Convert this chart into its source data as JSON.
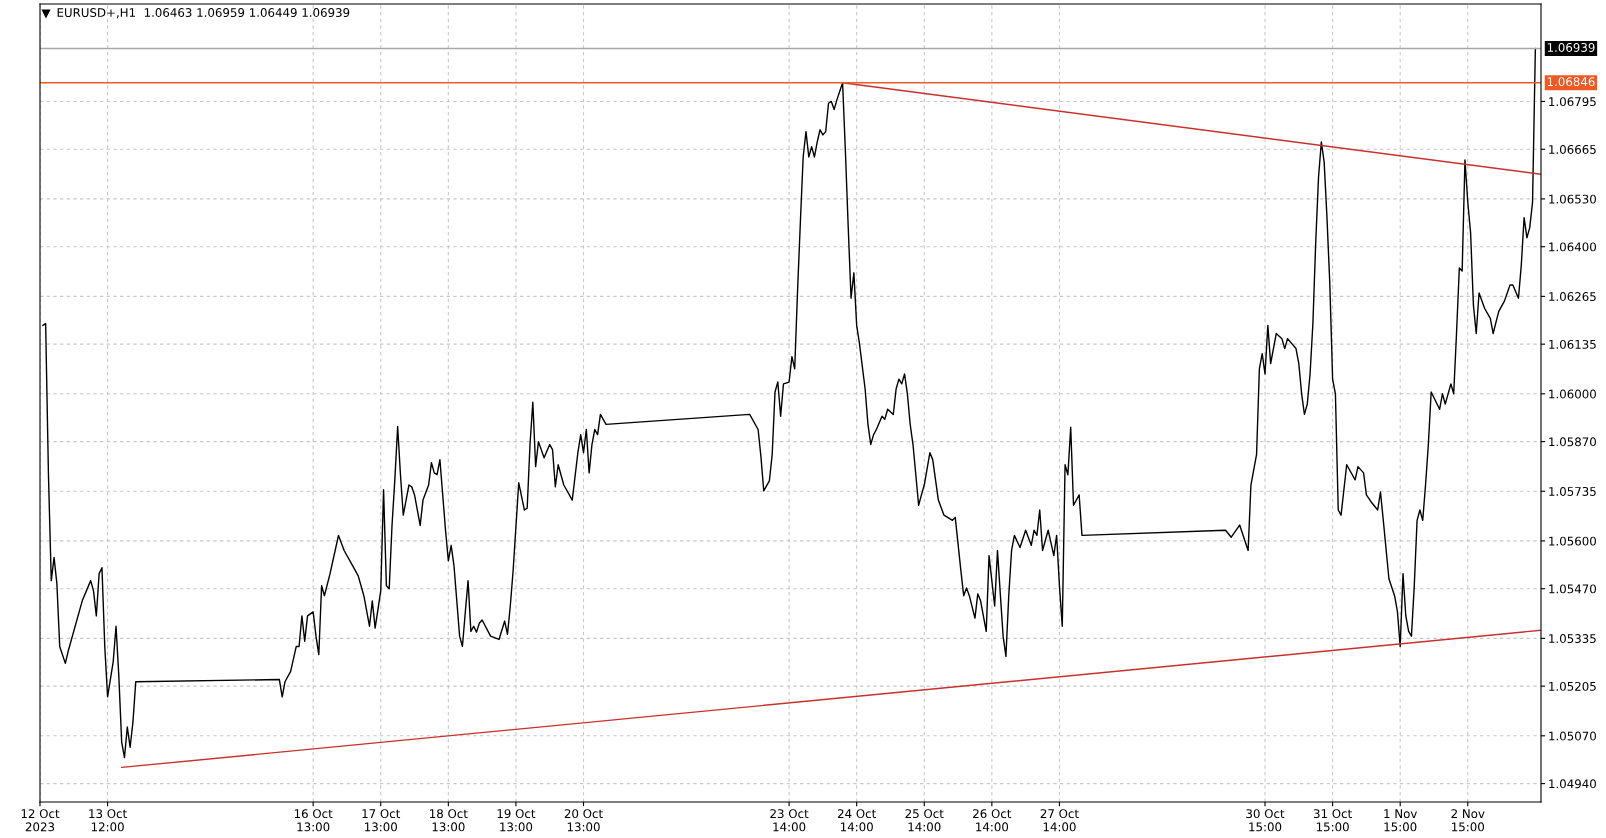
{
  "chart_data": {
    "type": "line",
    "title": "EURUSD+,H1  1.06463 1.06959 1.06449 1.06939",
    "xlim": [
      "2023-10-12T12:00",
      "2023-11-03T17:00"
    ],
    "ylim": [
      1.0489,
      1.0706
    ],
    "xticks": [
      {
        "value": "2023-10-12T12:00",
        "label": "12 Oct 2023"
      },
      {
        "value": "2023-10-13T12:00",
        "label": "13 Oct 12:00"
      },
      {
        "value": "2023-10-16T13:00",
        "label": "16 Oct 13:00"
      },
      {
        "value": "2023-10-17T13:00",
        "label": "17 Oct 13:00"
      },
      {
        "value": "2023-10-18T13:00",
        "label": "18 Oct 13:00"
      },
      {
        "value": "2023-10-19T13:00",
        "label": "19 Oct 13:00"
      },
      {
        "value": "2023-10-20T13:00",
        "label": "20 Oct 13:00"
      },
      {
        "value": "2023-10-23T14:00",
        "label": "23 Oct 14:00"
      },
      {
        "value": "2023-10-24T14:00",
        "label": "24 Oct 14:00"
      },
      {
        "value": "2023-10-25T14:00",
        "label": "25 Oct 14:00"
      },
      {
        "value": "2023-10-26T14:00",
        "label": "26 Oct 14:00"
      },
      {
        "value": "2023-10-27T14:00",
        "label": "27 Oct 14:00"
      },
      {
        "value": "2023-10-30T15:00",
        "label": "30 Oct 15:00"
      },
      {
        "value": "2023-10-31T15:00",
        "label": "31 Oct 15:00"
      },
      {
        "value": "2023-11-01T15:00",
        "label": "1 Nov 15:00"
      },
      {
        "value": "2023-11-02T15:00",
        "label": "2 Nov 15:00"
      }
    ],
    "yticks": [
      {
        "value": 1.0494,
        "label": "1.04940"
      },
      {
        "value": 1.0507,
        "label": "1.05070"
      },
      1.05205,
      1.05335,
      {
        "value": 1.0547,
        "label": "1.05470"
      },
      {
        "value": 1.056,
        "label": "1.05600"
      },
      1.05735,
      {
        "value": 1.0587,
        "label": "1.05870"
      },
      {
        "value": 1.06,
        "label": "1.06000"
      },
      1.06135,
      1.06265,
      {
        "value": 1.064,
        "label": "1.06400"
      },
      {
        "value": 1.0653,
        "label": "1.06530"
      },
      1.06665,
      1.06795
    ],
    "grid": true,
    "ref_lines": [
      {
        "axis": "y",
        "value": 1.06939,
        "label": "1.06939",
        "color": "#a8a8a8"
      },
      {
        "axis": "y",
        "value": 1.06846,
        "label": "1.06846",
        "color": "#f05a22"
      }
    ],
    "series": [
      {
        "color": "#000000",
        "x": [
          "2023-10-12T13:00",
          "2023-10-12T14:00",
          "2023-10-12T15:00",
          "2023-10-12T16:00",
          "2023-10-12T17:00",
          "2023-10-12T18:00",
          "2023-10-12T19:00",
          "2023-10-12T21:00",
          "2023-10-12T22:00",
          "2023-10-13T03:00",
          "2023-10-13T06:00",
          "2023-10-13T07:00",
          "2023-10-13T08:00",
          "2023-10-13T09:00",
          "2023-10-13T10:00",
          "2023-10-13T11:00",
          "2023-10-13T12:00",
          "2023-10-13T14:00",
          "2023-10-13T15:00",
          "2023-10-13T16:00",
          "2023-10-13T17:00",
          "2023-10-13T18:00",
          "2023-10-13T19:00",
          "2023-10-13T20:00",
          "2023-10-13T21:00",
          "2023-10-13T22:00",
          "2023-10-16T01:00",
          "2023-10-16T02:00",
          "2023-10-16T03:00",
          "2023-10-16T05:00",
          "2023-10-16T07:00",
          "2023-10-16T08:00",
          "2023-10-16T09:00",
          "2023-10-16T10:00",
          "2023-10-16T11:00",
          "2023-10-16T13:00",
          "2023-10-16T14:00",
          "2023-10-16T15:00",
          "2023-10-16T16:00",
          "2023-10-16T17:00",
          "2023-10-16T19:00",
          "2023-10-16T20:00",
          "2023-10-16T22:00",
          "2023-10-17T00:00",
          "2023-10-17T03:00",
          "2023-10-17T05:00",
          "2023-10-17T07:00",
          "2023-10-17T09:00",
          "2023-10-17T10:00",
          "2023-10-17T11:00",
          "2023-10-17T13:00",
          "2023-10-17T14:00",
          "2023-10-17T15:00",
          "2023-10-17T16:00",
          "2023-10-17T17:00",
          "2023-10-17T18:00",
          "2023-10-17T19:00",
          "2023-10-17T20:00",
          "2023-10-17T21:00",
          "2023-10-17T22:00",
          "2023-10-17T23:00",
          "2023-10-18T00:00",
          "2023-10-18T01:00",
          "2023-10-18T03:00",
          "2023-10-18T04:00",
          "2023-10-18T06:00",
          "2023-10-18T07:00",
          "2023-10-18T08:00",
          "2023-10-18T09:00",
          "2023-10-18T10:00",
          "2023-10-18T12:00",
          "2023-10-18T13:00",
          "2023-10-18T14:00",
          "2023-10-18T15:00",
          "2023-10-18T17:00",
          "2023-10-18T18:00",
          "2023-10-18T19:00",
          "2023-10-18T20:00",
          "2023-10-18T21:00",
          "2023-10-18T22:00",
          "2023-10-18T23:00",
          "2023-10-19T00:00",
          "2023-10-19T01:00",
          "2023-10-19T04:00",
          "2023-10-19T07:00",
          "2023-10-19T09:00",
          "2023-10-19T10:00",
          "2023-10-19T11:00",
          "2023-10-19T12:00",
          "2023-10-19T14:00",
          "2023-10-19T16:00",
          "2023-10-19T17:00",
          "2023-10-19T18:00",
          "2023-10-19T19:00",
          "2023-10-19T20:00",
          "2023-10-19T21:00",
          "2023-10-19T23:00",
          "2023-10-20T01:00",
          "2023-10-20T02:00",
          "2023-10-20T03:00",
          "2023-10-20T04:00",
          "2023-10-20T06:00",
          "2023-10-20T09:00",
          "2023-10-20T11:00",
          "2023-10-20T12:00",
          "2023-10-20T13:00",
          "2023-10-20T14:00",
          "2023-10-20T15:00",
          "2023-10-20T16:00",
          "2023-10-20T17:00",
          "2023-10-20T18:00",
          "2023-10-20T19:00",
          "2023-10-20T21:00",
          "2023-10-23T00:00",
          "2023-10-23T03:00",
          "2023-10-23T04:00",
          "2023-10-23T05:00",
          "2023-10-23T07:00",
          "2023-10-23T08:00",
          "2023-10-23T09:00",
          "2023-10-23T10:00",
          "2023-10-23T11:00",
          "2023-10-23T12:00",
          "2023-10-23T14:00",
          "2023-10-23T15:00",
          "2023-10-23T16:00",
          "2023-10-23T17:00",
          "2023-10-23T18:00",
          "2023-10-23T19:00",
          "2023-10-23T20:00",
          "2023-10-23T21:00",
          "2023-10-23T22:00",
          "2023-10-23T23:00",
          "2023-10-24T00:00",
          "2023-10-24T01:00",
          "2023-10-24T02:00",
          "2023-10-24T03:00",
          "2023-10-24T04:00",
          "2023-10-24T05:00",
          "2023-10-24T06:00",
          "2023-10-24T07:00",
          "2023-10-24T09:00",
          "2023-10-24T10:00",
          "2023-10-24T11:00",
          "2023-10-24T12:00",
          "2023-10-24T13:00",
          "2023-10-24T14:00",
          "2023-10-24T15:00",
          "2023-10-24T17:00",
          "2023-10-24T18:00",
          "2023-10-24T19:00",
          "2023-10-24T20:00",
          "2023-10-24T21:00",
          "2023-10-24T23:00",
          "2023-10-25T00:00",
          "2023-10-25T01:00",
          "2023-10-25T03:00",
          "2023-10-25T04:00",
          "2023-10-25T05:00",
          "2023-10-25T06:00",
          "2023-10-25T07:00",
          "2023-10-25T08:00",
          "2023-10-25T09:00",
          "2023-10-25T10:00",
          "2023-10-25T12:00",
          "2023-10-25T13:00",
          "2023-10-25T14:00",
          "2023-10-25T16:00",
          "2023-10-25T17:00",
          "2023-10-25T19:00",
          "2023-10-25T21:00",
          "2023-10-26T00:00",
          "2023-10-26T01:00",
          "2023-10-26T03:00",
          "2023-10-26T04:00",
          "2023-10-26T05:00",
          "2023-10-26T06:00",
          "2023-10-26T08:00",
          "2023-10-26T09:00",
          "2023-10-26T10:00",
          "2023-10-26T12:00",
          "2023-10-26T13:00",
          "2023-10-26T15:00",
          "2023-10-26T16:00",
          "2023-10-26T17:00",
          "2023-10-26T18:00",
          "2023-10-26T19:00",
          "2023-10-26T20:00",
          "2023-10-26T21:00",
          "2023-10-26T22:00",
          "2023-10-27T00:00",
          "2023-10-27T02:00",
          "2023-10-27T04:00",
          "2023-10-27T05:00",
          "2023-10-27T06:00",
          "2023-10-27T07:00",
          "2023-10-27T08:00",
          "2023-10-27T10:00",
          "2023-10-27T12:00",
          "2023-10-27T13:00",
          "2023-10-27T14:00",
          "2023-10-27T15:00",
          "2023-10-27T16:00",
          "2023-10-27T17:00",
          "2023-10-27T18:00",
          "2023-10-27T19:00",
          "2023-10-27T21:00",
          "2023-10-27T22:00",
          "2023-10-30T01:00",
          "2023-10-30T03:00",
          "2023-10-30T06:00",
          "2023-10-30T09:00",
          "2023-10-30T10:00",
          "2023-10-30T12:00",
          "2023-10-30T13:00",
          "2023-10-30T14:00",
          "2023-10-30T15:00",
          "2023-10-30T16:00",
          "2023-10-30T17:00",
          "2023-10-30T19:00",
          "2023-10-30T21:00",
          "2023-10-30T22:00",
          "2023-10-30T23:00",
          "2023-10-31T02:00",
          "2023-10-31T03:00",
          "2023-10-31T04:00",
          "2023-10-31T05:00",
          "2023-10-31T06:00",
          "2023-10-31T07:00",
          "2023-10-31T08:00",
          "2023-10-31T09:00",
          "2023-10-31T10:00",
          "2023-10-31T11:00",
          "2023-10-31T12:00",
          "2023-10-31T13:00",
          "2023-10-31T14:00",
          "2023-10-31T15:00",
          "2023-10-31T16:00",
          "2023-10-31T17:00",
          "2023-10-31T18:00",
          "2023-10-31T20:00",
          "2023-10-31T23:00",
          "2023-11-01T00:00",
          "2023-11-01T02:00",
          "2023-11-01T03:00",
          "2023-11-01T05:00",
          "2023-11-01T07:00",
          "2023-11-01T08:00",
          "2023-11-01T09:00",
          "2023-11-01T11:00",
          "2023-11-01T13:00",
          "2023-11-01T14:00",
          "2023-11-01T15:00",
          "2023-11-01T16:00",
          "2023-11-01T17:00",
          "2023-11-01T18:00",
          "2023-11-01T19:00",
          "2023-11-01T20:00",
          "2023-11-01T21:00",
          "2023-11-01T22:00",
          "2023-11-01T23:00",
          "2023-11-02T00:00",
          "2023-11-02T01:00",
          "2023-11-02T02:00",
          "2023-11-02T05:00",
          "2023-11-02T06:00",
          "2023-11-02T07:00",
          "2023-11-02T09:00",
          "2023-11-02T10:00",
          "2023-11-02T11:00",
          "2023-11-02T12:00",
          "2023-11-02T13:00",
          "2023-11-02T14:00",
          "2023-11-02T15:00",
          "2023-11-02T16:00",
          "2023-11-02T17:00",
          "2023-11-02T18:00",
          "2023-11-02T19:00",
          "2023-11-02T21:00",
          "2023-11-02T23:00",
          "2023-11-03T00:00",
          "2023-11-03T02:00",
          "2023-11-03T04:00",
          "2023-11-03T06:00",
          "2023-11-03T07:00",
          "2023-11-03T09:00",
          "2023-11-03T10:00",
          "2023-11-03T11:00",
          "2023-11-03T12:00",
          "2023-11-03T13:00",
          "2023-11-03T14:00",
          "2023-11-03T15:00"
        ],
        "values": [
          1.06186,
          1.06191,
          1.0578,
          1.05492,
          1.05555,
          1.05483,
          1.05313,
          1.05267,
          1.053,
          1.05437,
          1.05492,
          1.05464,
          1.05396,
          1.05511,
          1.05527,
          1.05313,
          1.05176,
          1.05272,
          1.05368,
          1.05231,
          1.05053,
          1.05011,
          1.05094,
          1.05039,
          1.05107,
          1.05217,
          1.05223,
          1.05176,
          1.05217,
          1.05245,
          1.05313,
          1.05313,
          1.05396,
          1.05327,
          1.05396,
          1.05407,
          1.05341,
          1.05291,
          1.05478,
          1.05451,
          1.05511,
          1.05546,
          1.05615,
          1.05574,
          1.05533,
          1.05505,
          1.05451,
          1.05368,
          1.05437,
          1.05363,
          1.05464,
          1.05739,
          1.05478,
          1.0547,
          1.05642,
          1.05766,
          1.05911,
          1.0578,
          1.0567,
          1.05711,
          1.05752,
          1.05747,
          1.05725,
          1.05642,
          1.05711,
          1.05752,
          1.05813,
          1.05785,
          1.0578,
          1.05821,
          1.05629,
          1.05546,
          1.05588,
          1.05533,
          1.05341,
          1.05313,
          1.05404,
          1.05492,
          1.05354,
          1.05368,
          1.05352,
          1.05376,
          1.05385,
          1.05341,
          1.05332,
          1.05382,
          1.05346,
          1.05423,
          1.05519,
          1.05758,
          1.05684,
          1.05689,
          1.05862,
          1.05977,
          1.05802,
          1.0587,
          1.05826,
          1.05862,
          1.05848,
          1.05747,
          1.05807,
          1.05752,
          1.05711,
          1.0584,
          1.05889,
          1.0584,
          1.05903,
          1.05785,
          1.05862,
          1.05903,
          1.05889,
          1.05944,
          1.05917,
          1.05944,
          1.05903,
          1.05829,
          1.05736,
          1.05763,
          1.05835,
          1.06005,
          1.06032,
          1.05939,
          1.06027,
          1.06032,
          1.06101,
          1.06068,
          1.06279,
          1.06466,
          1.06644,
          1.06713,
          1.06644,
          1.06672,
          1.06644,
          1.06685,
          1.06718,
          1.06704,
          1.06713,
          1.0679,
          1.06795,
          1.06773,
          1.068,
          1.06846,
          1.06658,
          1.06452,
          1.0626,
          1.06329,
          1.06186,
          1.06136,
          1.06013,
          1.05917,
          1.05862,
          1.05889,
          1.05903,
          1.05939,
          1.05931,
          1.05958,
          1.05944,
          1.06013,
          1.0604,
          1.06027,
          1.06054,
          1.06,
          1.05917,
          1.05862,
          1.05697,
          1.05725,
          1.05752,
          1.0584,
          1.05821,
          1.05711,
          1.0567,
          1.05656,
          1.05664,
          1.05519,
          1.05451,
          1.05472,
          1.05451,
          1.0539,
          1.05456,
          1.05437,
          1.05354,
          1.0556,
          1.05423,
          1.05574,
          1.05456,
          1.05341,
          1.05286,
          1.05451,
          1.05574,
          1.05615,
          1.05582,
          1.05629,
          1.05588,
          1.05629,
          1.05615,
          1.05684,
          1.05574,
          1.05629,
          1.0556,
          1.05615,
          1.05478,
          1.05368,
          1.05807,
          1.0578,
          1.05909,
          1.05697,
          1.05725,
          1.05615,
          1.05629,
          1.0561,
          1.05643,
          1.05574,
          1.05752,
          1.05835,
          1.06068,
          1.06109,
          1.06054,
          1.06186,
          1.06082,
          1.06164,
          1.0615,
          1.06123,
          1.0615,
          1.06123,
          1.06082,
          1.06,
          1.05944,
          1.05972,
          1.06054,
          1.06191,
          1.06411,
          1.06589,
          1.06685,
          1.0663,
          1.06479,
          1.06301,
          1.0604,
          1.06,
          1.05684,
          1.0567,
          1.05807,
          1.05766,
          1.05802,
          1.05785,
          1.05725,
          1.05703,
          1.05684,
          1.05733,
          1.05656,
          1.05497,
          1.05451,
          1.05409,
          1.05313,
          1.05511,
          1.05396,
          1.05354,
          1.05341,
          1.05478,
          1.05656,
          1.05684,
          1.05656,
          1.05752,
          1.05862,
          1.06005,
          1.05958,
          1.06,
          1.05972,
          1.06027,
          1.06,
          1.06164,
          1.06342,
          1.06334,
          1.06636,
          1.06521,
          1.06438,
          1.06241,
          1.06164,
          1.06274,
          1.06232,
          1.06205,
          1.06164,
          1.06224,
          1.06252,
          1.06296,
          1.06296,
          1.0626,
          1.0635,
          1.06479,
          1.06424,
          1.06452,
          1.06521,
          1.06939
        ]
      },
      {
        "type": "line",
        "color": "#c8302c",
        "x": [
          "2023-10-24T09:00",
          "2023-11-03T17:00"
        ],
        "values": [
          1.06846,
          1.06597
        ]
      },
      {
        "type": "line",
        "color": "#c8302c",
        "x": [
          "2023-10-13T17:00",
          "2023-11-03T17:00"
        ],
        "values": [
          1.04984,
          1.05357
        ]
      }
    ]
  }
}
